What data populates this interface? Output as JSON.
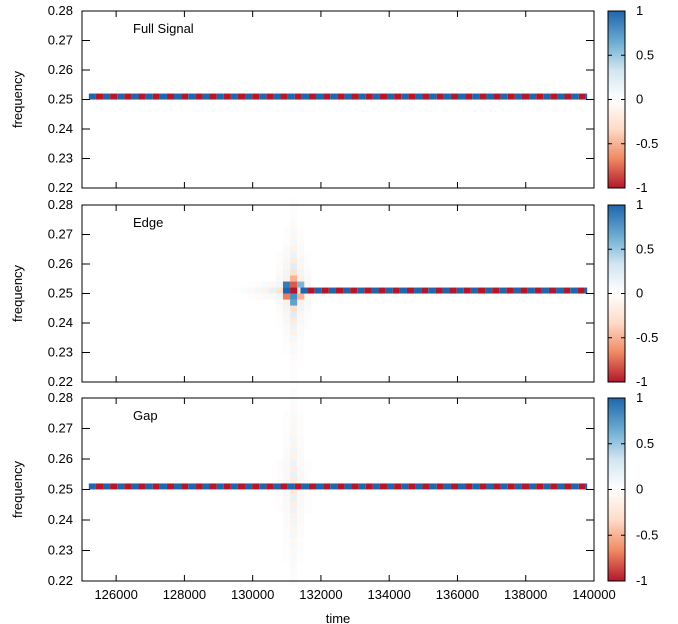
{
  "chart_data": [
    {
      "type": "heatmap",
      "title": "Full Signal",
      "xlabel": "",
      "ylabel": "frequency",
      "xlim": [
        125000,
        140000
      ],
      "ylim": [
        0.22,
        0.28
      ],
      "yticks": [
        "0.22",
        "0.23",
        "0.24",
        "0.25",
        "0.26",
        "0.27",
        "0.28"
      ],
      "clim": [
        -1,
        1
      ],
      "colorbar_ticks": [
        "-1",
        "-0.5",
        "0",
        "0.5",
        "1"
      ],
      "colormap": [
        "#b2182b",
        "#ef8a62",
        "#fddbc7",
        "#ffffff",
        "#d1e5f0",
        "#67a9cf",
        "#2166ac"
      ],
      "band": {
        "frequency": 0.251,
        "x_start": 125200,
        "x_end": 139800,
        "pattern": "alternating +1/-1"
      },
      "edge_cutoff": null,
      "leakage": null
    },
    {
      "type": "heatmap",
      "title": "Edge",
      "xlabel": "",
      "ylabel": "frequency",
      "xlim": [
        125000,
        140000
      ],
      "ylim": [
        0.22,
        0.28
      ],
      "yticks": [
        "0.22",
        "0.23",
        "0.24",
        "0.25",
        "0.26",
        "0.27",
        "0.28"
      ],
      "clim": [
        -1,
        1
      ],
      "colorbar_ticks": [
        "-1",
        "-0.5",
        "0",
        "0.5",
        "1"
      ],
      "colormap": [
        "#b2182b",
        "#ef8a62",
        "#fddbc7",
        "#ffffff",
        "#d1e5f0",
        "#67a9cf",
        "#2166ac"
      ],
      "band": {
        "frequency": 0.251,
        "x_start": 131400,
        "x_end": 139800,
        "pattern": "alternating +1/-1"
      },
      "edge_cutoff": 131200,
      "leakage": {
        "x_center": 131200,
        "frequency": 0.251
      }
    },
    {
      "type": "heatmap",
      "title": "Gap",
      "xlabel": "time",
      "ylabel": "frequency",
      "xlim": [
        125000,
        140000
      ],
      "ylim": [
        0.22,
        0.28
      ],
      "yticks": [
        "0.22",
        "0.23",
        "0.24",
        "0.25",
        "0.26",
        "0.27",
        "0.28"
      ],
      "xticks": [
        "126000",
        "128000",
        "130000",
        "132000",
        "134000",
        "136000",
        "138000",
        "140000"
      ],
      "clim": [
        -1,
        1
      ],
      "colorbar_ticks": [
        "-1",
        "-0.5",
        "0",
        "0.5",
        "1"
      ],
      "colormap": [
        "#b2182b",
        "#ef8a62",
        "#fddbc7",
        "#ffffff",
        "#d1e5f0",
        "#67a9cf",
        "#2166ac"
      ],
      "band": {
        "frequency": 0.251,
        "x_start": 125200,
        "x_end": 139800,
        "pattern": "alternating +1/-1"
      },
      "edge_cutoff": null,
      "leakage": {
        "x_center": 131200,
        "frequency": 0.251
      }
    }
  ]
}
